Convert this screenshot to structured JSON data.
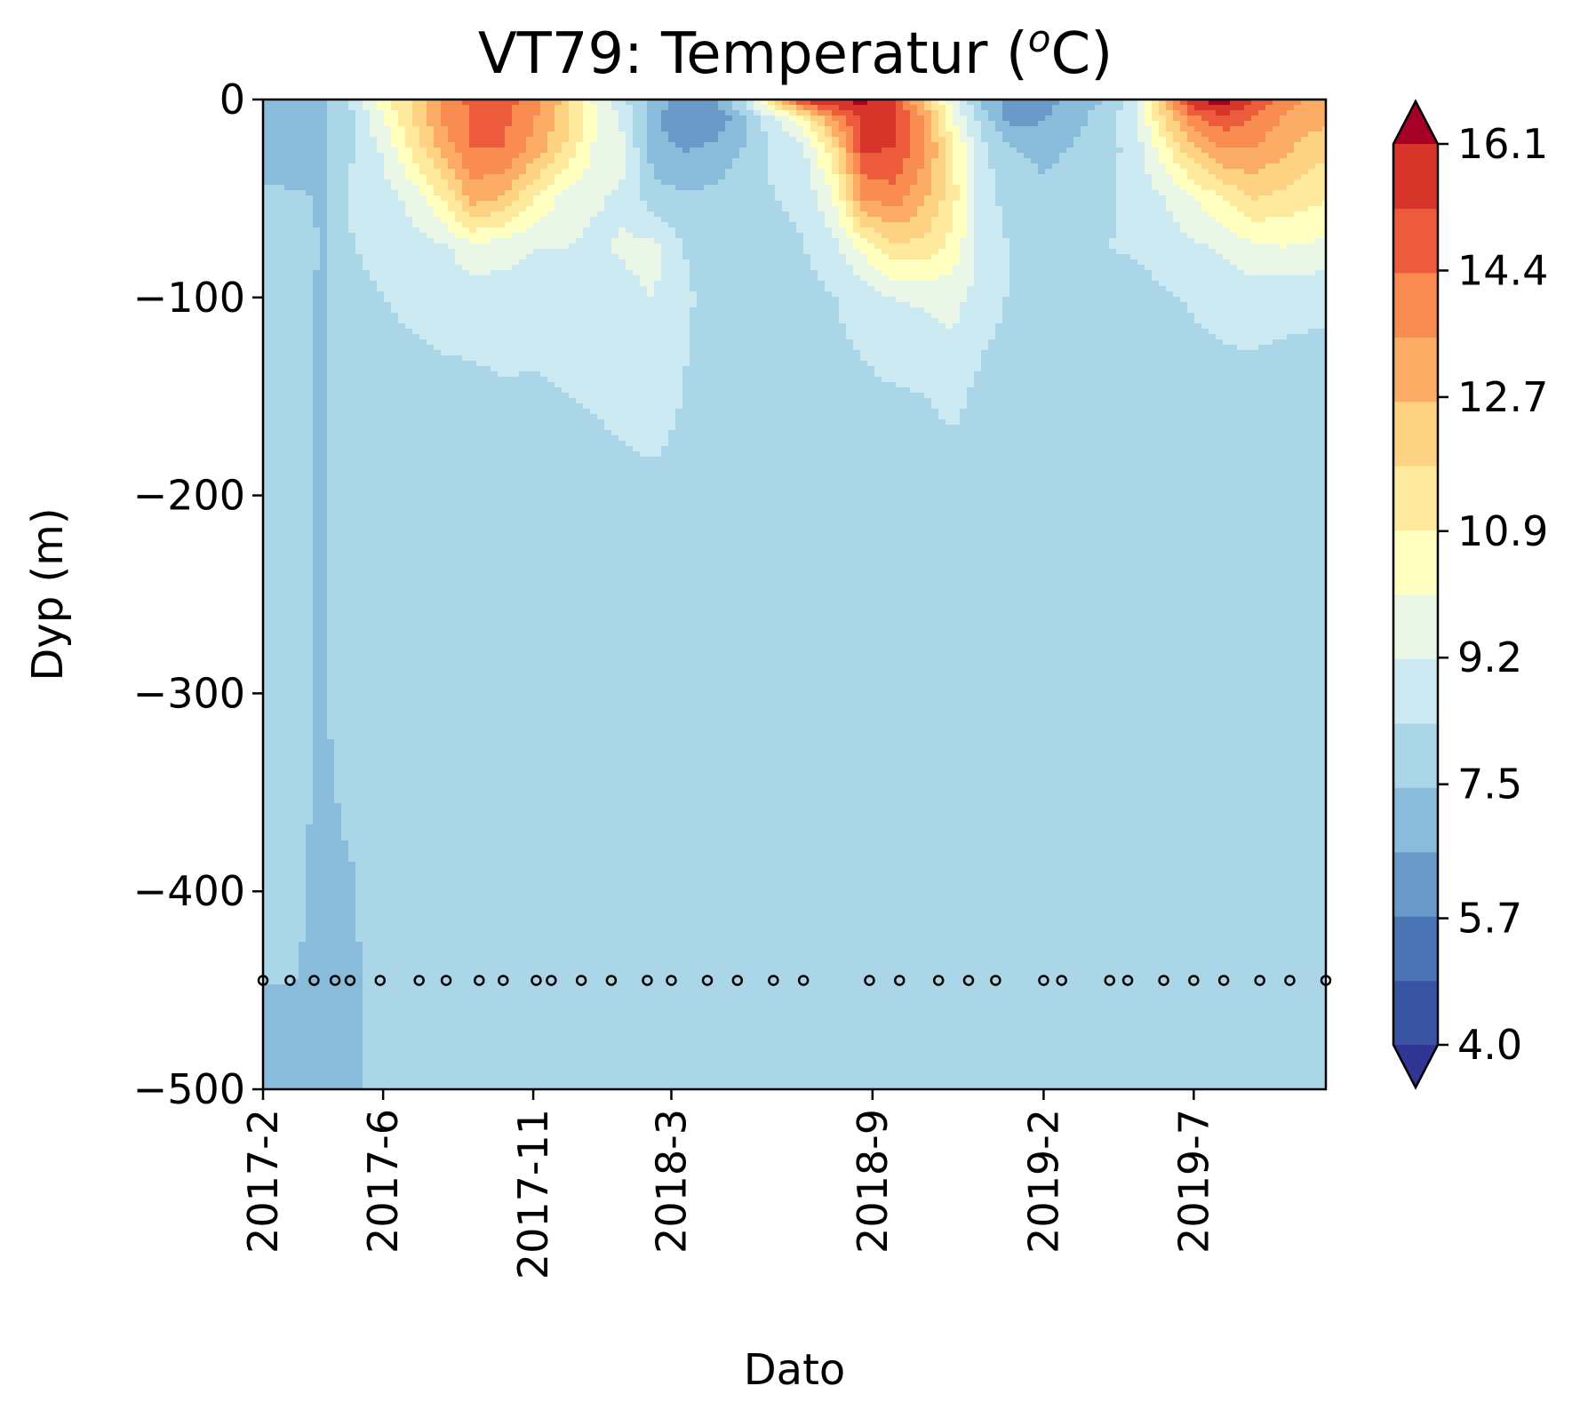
{
  "chart_data": {
    "type": "contour",
    "title_main": "VT79: Temperatur (",
    "title_sup": "o",
    "title_end": "C)",
    "xlabel": "Dato",
    "ylabel": "Dyp (m)",
    "ylim": [
      -500,
      0
    ],
    "y_ticks": [
      0,
      -100,
      -200,
      -300,
      -400,
      -500
    ],
    "y_tick_labels": [
      "0",
      "−100",
      "−200",
      "−300",
      "−400",
      "−500"
    ],
    "x_ticks": [
      {
        "label": "2017-2",
        "months": 0
      },
      {
        "label": "2017-6",
        "months": 4
      },
      {
        "label": "2017-11",
        "months": 9
      },
      {
        "label": "2018-3",
        "months": 13.6
      },
      {
        "label": "2018-9",
        "months": 20.3
      },
      {
        "label": "2019-2",
        "months": 26
      },
      {
        "label": "2019-7",
        "months": 31
      }
    ],
    "x_range_months": [
      0,
      35.4
    ],
    "sample_depth": -445,
    "sample_months": [
      0,
      0.9,
      1.7,
      2.4,
      2.9,
      3.9,
      5.2,
      6.1,
      7.2,
      8.0,
      9.1,
      9.6,
      10.6,
      11.6,
      12.8,
      13.6,
      14.8,
      15.8,
      17.0,
      18.0,
      20.2,
      21.2,
      22.5,
      23.5,
      24.4,
      26.0,
      26.6,
      28.2,
      28.8,
      30.0,
      31.0,
      32.0,
      33.2,
      34.2,
      35.4
    ],
    "colorbar": {
      "min": 4.0,
      "max": 16.1,
      "tick_values": [
        4.0,
        5.7,
        7.5,
        9.2,
        10.9,
        12.7,
        14.4,
        16.1
      ],
      "tick_labels": [
        "4.0",
        "5.7",
        "7.5",
        "9.2",
        "10.9",
        "12.7",
        "14.4",
        "16.1"
      ],
      "colors": [
        "#313695",
        "#3a54a4",
        "#4a74b4",
        "#6a9ac8",
        "#89bcdb",
        "#abd6e8",
        "#cde9f1",
        "#eaf6e6",
        "#ffffbf",
        "#fee99c",
        "#fed283",
        "#fcac64",
        "#f88c51",
        "#ec5c3c",
        "#d8352a",
        "#a50026"
      ]
    },
    "field": {
      "depths": [
        0,
        -10,
        -25,
        -50,
        -75,
        -100,
        -150,
        -200,
        -300,
        -400,
        -500
      ],
      "months": [
        0,
        1,
        2,
        3,
        4,
        5,
        6,
        7,
        8,
        9,
        10,
        11,
        12,
        13,
        14,
        15,
        16,
        17,
        18,
        19,
        20,
        21,
        22,
        23,
        24,
        25,
        26,
        27,
        28,
        29,
        30,
        31,
        32,
        33,
        34,
        35.4
      ],
      "temperature": [
        [
          7.3,
          7.0,
          7.2,
          8.5,
          10.5,
          12.0,
          13.8,
          14.6,
          14.8,
          14.0,
          12.5,
          10.0,
          8.5,
          7.2,
          6.0,
          6.5,
          8.5,
          12.0,
          15.8,
          16.3,
          16.3,
          15.2,
          12.5,
          9.5,
          7.2,
          6.0,
          6.2,
          7.0,
          7.5,
          9.0,
          12.5,
          16.3,
          16.4,
          15.2,
          14.0,
          13.0
        ],
        [
          7.3,
          7.0,
          7.2,
          8.3,
          10.0,
          11.8,
          13.6,
          14.5,
          14.6,
          13.6,
          12.2,
          10.2,
          9.0,
          6.8,
          5.8,
          6.0,
          7.0,
          9.0,
          10.5,
          13.5,
          15.5,
          15.4,
          13.5,
          10.0,
          7.8,
          6.2,
          6.6,
          7.2,
          7.8,
          8.8,
          11.8,
          14.0,
          15.0,
          14.2,
          13.4,
          12.8
        ],
        [
          7.2,
          6.9,
          7.2,
          8.3,
          9.3,
          11.2,
          13.0,
          14.4,
          14.4,
          13.2,
          11.8,
          10.0,
          9.4,
          7.0,
          6.5,
          6.8,
          7.5,
          8.5,
          9.0,
          11.5,
          15.4,
          15.2,
          13.8,
          11.0,
          8.5,
          7.5,
          7.2,
          7.5,
          8.0,
          8.6,
          10.5,
          12.5,
          13.5,
          13.5,
          12.8,
          12.0
        ],
        [
          7.6,
          7.6,
          7.4,
          8.5,
          8.8,
          9.5,
          11.0,
          13.0,
          12.5,
          11.0,
          9.8,
          9.3,
          9.0,
          7.8,
          7.6,
          7.7,
          8.0,
          8.3,
          8.5,
          10.0,
          13.5,
          14.0,
          12.8,
          11.2,
          8.6,
          8.0,
          7.7,
          8.0,
          8.2,
          8.5,
          9.2,
          10.0,
          11.0,
          11.8,
          11.5,
          11.0
        ],
        [
          7.7,
          7.7,
          7.4,
          8.3,
          8.5,
          8.8,
          9.0,
          9.8,
          9.5,
          9.2,
          9.2,
          9.0,
          9.3,
          9.5,
          8.3,
          8.0,
          7.9,
          8.0,
          8.3,
          8.8,
          10.3,
          11.5,
          11.5,
          10.5,
          8.8,
          8.2,
          8.0,
          8.0,
          8.3,
          8.4,
          8.7,
          9.0,
          9.3,
          9.8,
          10.0,
          9.8
        ],
        [
          7.6,
          7.6,
          7.4,
          8.2,
          8.3,
          8.5,
          8.6,
          8.7,
          8.8,
          8.7,
          8.6,
          8.6,
          8.9,
          9.2,
          8.5,
          8.0,
          7.9,
          7.9,
          8.0,
          8.3,
          8.7,
          9.2,
          9.3,
          9.5,
          8.7,
          8.2,
          8.0,
          7.8,
          7.9,
          8.0,
          8.2,
          8.4,
          8.6,
          8.7,
          8.6,
          8.5
        ],
        [
          7.6,
          7.6,
          7.4,
          7.9,
          8.0,
          8.0,
          8.1,
          8.1,
          8.2,
          8.2,
          8.3,
          8.4,
          8.6,
          8.9,
          8.3,
          7.9,
          7.8,
          7.9,
          7.9,
          8.0,
          8.1,
          8.2,
          8.3,
          8.6,
          8.0,
          7.9,
          7.9,
          7.8,
          7.8,
          7.8,
          7.9,
          8.0,
          8.0,
          8.0,
          7.9,
          7.9
        ],
        [
          7.6,
          7.6,
          7.4,
          7.8,
          7.8,
          7.9,
          7.9,
          7.9,
          7.9,
          7.9,
          7.9,
          7.9,
          8.0,
          8.0,
          7.9,
          7.8,
          7.8,
          7.8,
          7.8,
          7.8,
          7.8,
          7.8,
          7.8,
          7.8,
          7.8,
          7.8,
          7.8,
          7.8,
          7.8,
          7.8,
          7.8,
          7.8,
          7.8,
          7.8,
          7.8,
          7.8
        ],
        [
          7.6,
          7.6,
          7.4,
          7.8,
          7.8,
          7.8,
          7.8,
          7.8,
          7.8,
          7.8,
          7.8,
          7.8,
          7.8,
          7.8,
          7.8,
          7.8,
          7.8,
          7.8,
          7.8,
          7.8,
          7.8,
          7.8,
          7.8,
          7.8,
          7.8,
          7.8,
          7.8,
          7.8,
          7.8,
          7.8,
          7.8,
          7.8,
          7.8,
          7.8,
          7.8,
          7.8
        ],
        [
          7.6,
          7.6,
          7.3,
          7.4,
          7.8,
          7.8,
          7.8,
          7.8,
          7.8,
          7.8,
          7.8,
          7.8,
          7.8,
          7.8,
          7.8,
          7.8,
          7.8,
          7.8,
          7.8,
          7.8,
          7.8,
          7.8,
          7.8,
          7.8,
          7.8,
          7.8,
          7.8,
          7.8,
          7.8,
          7.8,
          7.8,
          7.8,
          7.8,
          7.8,
          7.8,
          7.8
        ],
        [
          7.3,
          7.3,
          7.3,
          7.3,
          7.8,
          7.8,
          7.8,
          7.8,
          7.8,
          7.8,
          7.8,
          7.8,
          7.8,
          7.8,
          7.8,
          7.8,
          7.8,
          7.8,
          7.8,
          7.8,
          7.8,
          7.8,
          7.8,
          7.8,
          7.8,
          7.8,
          7.8,
          7.8,
          7.8,
          7.8,
          7.8,
          7.8,
          7.8,
          7.8,
          7.8,
          7.8
        ]
      ]
    }
  }
}
